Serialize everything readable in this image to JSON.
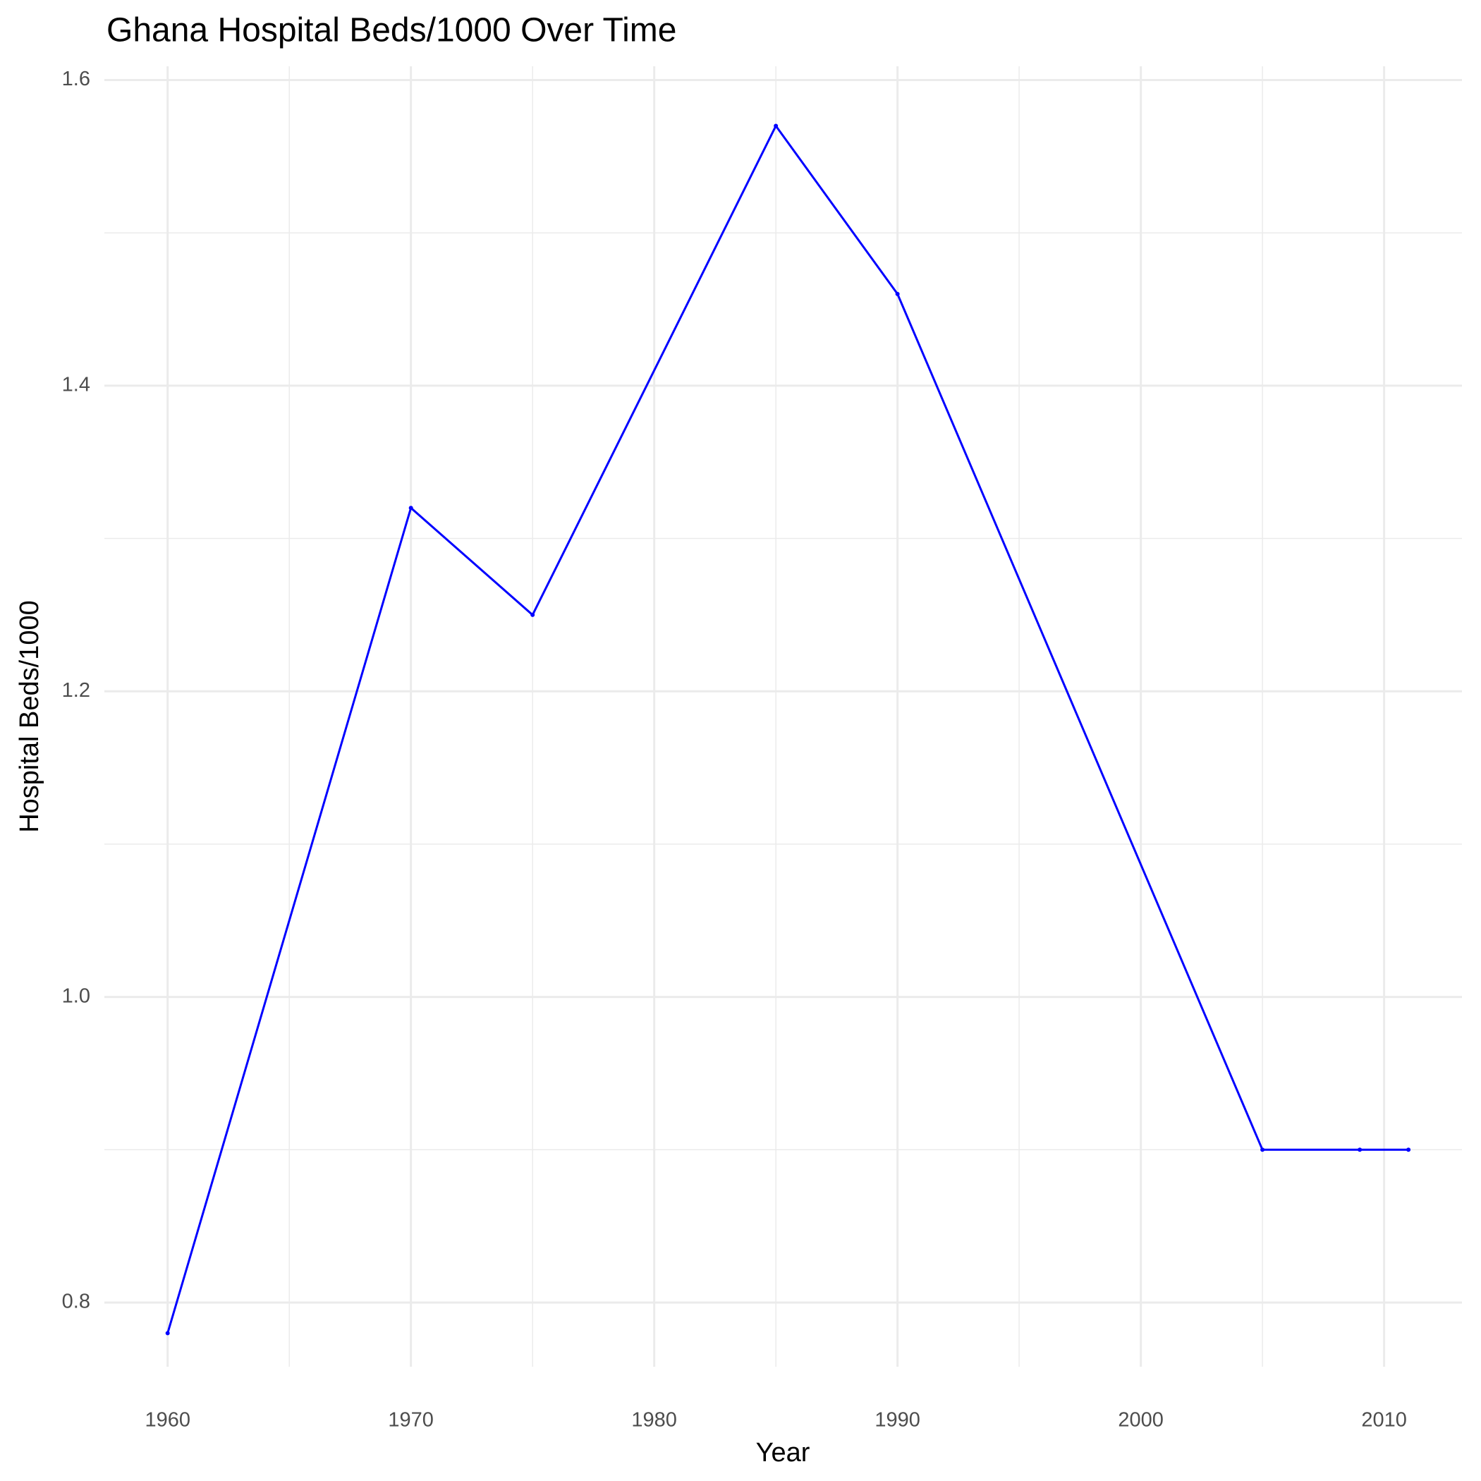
{
  "chart_data": {
    "type": "line",
    "title": "Ghana Hospital Beds/1000 Over Time",
    "x_label": "Year",
    "y_label": "Hospital Beds/1000",
    "x": [
      1960,
      1970,
      1975,
      1985,
      1990,
      2005,
      2009,
      2011
    ],
    "series": [
      {
        "name": "Hospital Beds/1000",
        "color": "#0000ff",
        "values": [
          0.78,
          1.32,
          1.25,
          1.57,
          1.46,
          0.9,
          0.9,
          0.9
        ]
      }
    ],
    "xlim": [
      1957.4,
      2013.2
    ],
    "xticks": [
      1960,
      1970,
      1980,
      1990,
      2000,
      2010
    ],
    "ylim": [
      0.758,
      1.609
    ],
    "yticks": [
      {
        "value": 0.8,
        "label": "0.8"
      },
      {
        "value": 1.0,
        "label": "1.0"
      },
      {
        "value": 1.2,
        "label": "1.2"
      },
      {
        "value": 1.4,
        "label": "1.4"
      },
      {
        "value": 1.6,
        "label": "1.6"
      }
    ],
    "grid": true
  }
}
